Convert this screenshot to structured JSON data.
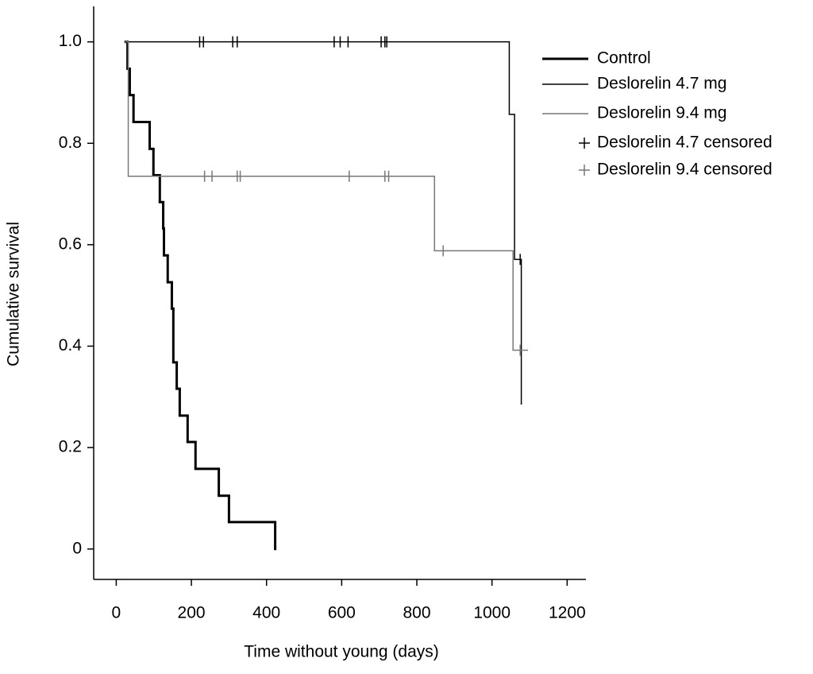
{
  "chart_data": {
    "type": "step",
    "xlabel": "Time without young (days)",
    "ylabel": "Cumulative survival",
    "xlim": [
      -60,
      1250
    ],
    "ylim": [
      -0.06,
      1.07
    ],
    "xticks": [
      0,
      200,
      400,
      600,
      800,
      1000,
      1200
    ],
    "yticks": [
      0,
      0.2,
      0.4,
      0.6,
      0.8,
      {
        "value": 1,
        "label": "1.0"
      }
    ],
    "legend": "upper right",
    "series": [
      {
        "name": "Control",
        "kind": "step",
        "color": "#000000",
        "linewidth": 3,
        "x": [
          25,
          30,
          36,
          46,
          89,
          99,
          116,
          125,
          127,
          137,
          148,
          152,
          161,
          169,
          190,
          211,
          273,
          300,
          423
        ],
        "values": [
          1.0,
          0.947,
          0.895,
          0.842,
          0.789,
          0.737,
          0.684,
          0.632,
          0.579,
          0.526,
          0.474,
          0.368,
          0.316,
          0.263,
          0.211,
          0.158,
          0.105,
          0.053,
          0
        ]
      },
      {
        "name": "Deslorelin 4.7 mg",
        "kind": "step",
        "color": "#000000",
        "linewidth": 1.5,
        "x": [
          25,
          1046,
          1060,
          1078
        ],
        "values": [
          1.0,
          0.857,
          0.571,
          0.286
        ]
      },
      {
        "name": "Deslorelin 9.4 mg",
        "kind": "step",
        "color": "#777777",
        "linewidth": 1.5,
        "x": [
          25,
          32,
          847,
          1056,
          1094
        ],
        "values": [
          1.0,
          0.735,
          0.588,
          0.392,
          0.392
        ]
      },
      {
        "name": "Deslorelin 4.7 censored",
        "kind": "censored",
        "color": "#000000",
        "linewidth": 1.5,
        "x": [
          222,
          232,
          310,
          322,
          580,
          596,
          617,
          705,
          715,
          720,
          1075
        ],
        "values": [
          1.0,
          1.0,
          1.0,
          1.0,
          1.0,
          1.0,
          1.0,
          1.0,
          1.0,
          1.0,
          0.571
        ]
      },
      {
        "name": "Deslorelin 9.4 censored",
        "kind": "censored",
        "color": "#777777",
        "linewidth": 1.5,
        "x": [
          235,
          255,
          322,
          330,
          620,
          715,
          725,
          870,
          1075
        ],
        "values": [
          0.735,
          0.735,
          0.735,
          0.735,
          0.735,
          0.735,
          0.735,
          0.588,
          0.392
        ]
      }
    ]
  }
}
